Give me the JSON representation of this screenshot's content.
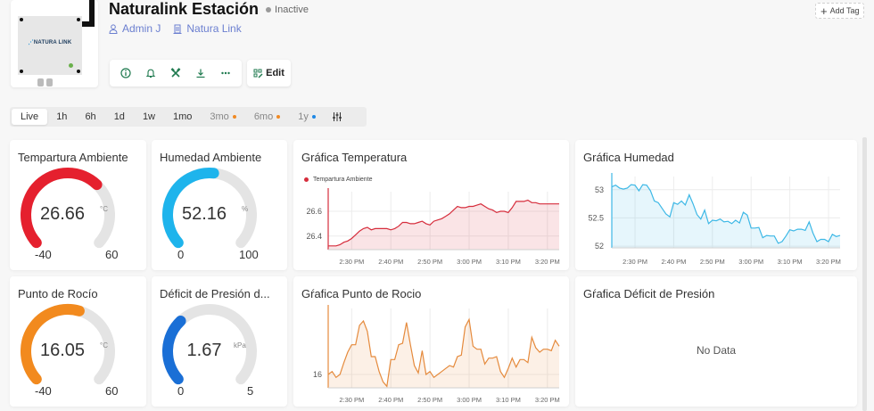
{
  "header": {
    "title": "Naturalink Estación",
    "status": "Inactive",
    "status_color": "#9a9a9a",
    "owner": "Admin J",
    "organization": "Natura Link",
    "add_tag_label": "Add Tag",
    "edit_label": "Edit",
    "device_logo_text": "NATURA LINK",
    "actions": [
      {
        "name": "info",
        "icon": "info-icon"
      },
      {
        "name": "alerts",
        "icon": "bell-icon"
      },
      {
        "name": "tools",
        "icon": "tools-icon"
      },
      {
        "name": "download",
        "icon": "download-icon"
      },
      {
        "name": "more",
        "icon": "more-icon"
      }
    ]
  },
  "time_range": {
    "items": [
      {
        "label": "Live",
        "active": true
      },
      {
        "label": "1h"
      },
      {
        "label": "6h"
      },
      {
        "label": "1d"
      },
      {
        "label": "1w"
      },
      {
        "label": "1mo"
      },
      {
        "label": "3mo",
        "muted": true,
        "dot": "#f08a24"
      },
      {
        "label": "6mo",
        "muted": true,
        "dot": "#f08a24"
      },
      {
        "label": "1y",
        "muted": true,
        "dot": "#1e88e5"
      }
    ],
    "settings_icon": "sliders-icon"
  },
  "gauges": [
    {
      "title": "Tempartura Ambiente",
      "value": "26.66",
      "unit": "°C",
      "min": "-40",
      "max": "60",
      "fraction": 0.6666,
      "color": "#e5202e"
    },
    {
      "title": "Humedad Ambiente",
      "value": "52.16",
      "unit": "%",
      "min": "0",
      "max": "100",
      "fraction": 0.5216,
      "color": "#1eb4ec"
    },
    {
      "title": "Punto de Rocío",
      "value": "16.05",
      "unit": "°C",
      "min": "-40",
      "max": "60",
      "fraction": 0.5605,
      "color": "#f28a1e"
    },
    {
      "title": "Déficit de Presión d...",
      "value": "1.67",
      "unit": "kPa",
      "min": "0",
      "max": "5",
      "fraction": 0.334,
      "color": "#1a6fd6"
    }
  ],
  "charts": {
    "temperature": {
      "title": "Gráfica Temperatura",
      "legend": "Tempartura Ambiente"
    },
    "humidity": {
      "title": "Gráfica Humedad"
    },
    "dew_point": {
      "title": "Gŕafica Punto de Rocio"
    },
    "vpd": {
      "title": "Gŕafica Déficit de Presión",
      "no_data": "No Data"
    }
  },
  "chart_data": [
    {
      "type": "area",
      "title": "Gráfica Temperatura",
      "legend": [
        "Tempartura Ambiente"
      ],
      "color": "#d62d3c",
      "x_ticks": [
        "2:30 PM",
        "2:40 PM",
        "2:50 PM",
        "3:00 PM",
        "3:10 PM",
        "3:20 PM"
      ],
      "y_ticks": [
        26.4,
        26.6
      ],
      "ylim": [
        26.29,
        26.73
      ],
      "x_minutes": [
        24,
        25,
        26,
        27,
        28,
        29,
        30,
        31,
        32,
        33,
        34,
        35,
        36,
        37,
        38,
        39,
        40,
        41,
        42,
        43,
        44,
        45,
        46,
        47,
        48,
        49,
        50,
        51,
        52,
        53,
        54,
        55,
        56,
        57,
        58,
        59,
        60,
        61,
        62,
        63,
        64,
        65,
        66,
        67,
        68,
        69,
        70,
        71,
        72,
        73,
        74,
        75,
        76,
        77,
        78,
        79,
        80,
        81,
        82,
        83
      ],
      "values": [
        26.32,
        26.32,
        26.32,
        26.33,
        26.35,
        26.36,
        26.38,
        26.41,
        26.44,
        26.46,
        26.47,
        26.45,
        26.46,
        26.46,
        26.46,
        26.46,
        26.45,
        26.46,
        26.48,
        26.51,
        26.51,
        26.5,
        26.5,
        26.51,
        26.52,
        26.5,
        26.49,
        26.52,
        26.53,
        26.54,
        26.56,
        26.58,
        26.61,
        26.64,
        26.63,
        26.63,
        26.64,
        26.64,
        26.65,
        26.66,
        26.64,
        26.62,
        26.61,
        26.59,
        26.6,
        26.6,
        26.59,
        26.63,
        26.68,
        26.68,
        26.68,
        26.69,
        26.67,
        26.67,
        26.66,
        26.66,
        26.66,
        26.66,
        26.66,
        26.66
      ]
    },
    {
      "type": "area",
      "title": "Gráfica Humedad",
      "color": "#3db8e6",
      "x_ticks": [
        "2:30 PM",
        "2:40 PM",
        "2:50 PM",
        "3:00 PM",
        "3:10 PM",
        "3:20 PM"
      ],
      "y_ticks": [
        52,
        52.5,
        53
      ],
      "ylim": [
        51.97,
        53.17
      ],
      "values": [
        53.05,
        53.08,
        53.03,
        53.01,
        53.03,
        53.09,
        53.08,
        52.98,
        53.09,
        53.08,
        52.98,
        52.8,
        52.77,
        52.67,
        52.57,
        52.52,
        52.77,
        52.74,
        52.8,
        52.73,
        52.91,
        52.75,
        52.56,
        52.48,
        52.64,
        52.4,
        52.46,
        52.45,
        52.48,
        52.43,
        52.44,
        52.4,
        52.46,
        52.41,
        52.6,
        52.55,
        52.32,
        52.32,
        52.33,
        52.15,
        52.19,
        52.18,
        52.18,
        52.05,
        52.08,
        52.18,
        52.29,
        52.27,
        52.3,
        52.3,
        52.28,
        52.43,
        52.23,
        52.08,
        52.12,
        52.12,
        52.08,
        52.21,
        52.17,
        52.19
      ]
    },
    {
      "type": "area",
      "title": "Gŕafica Punto de Rocio",
      "color": "#e58a3c",
      "x_ticks": [
        "2:30 PM",
        "2:40 PM",
        "2:50 PM",
        "3:00 PM",
        "3:10 PM",
        "3:20 PM"
      ],
      "y_ticks": [
        16
      ],
      "ylim": [
        15.91,
        16.42
      ],
      "values": [
        16.0,
        16.02,
        15.98,
        16.0,
        16.08,
        16.15,
        16.2,
        16.2,
        16.33,
        16.36,
        16.29,
        16.12,
        16.12,
        16.02,
        15.95,
        15.92,
        16.1,
        16.1,
        16.2,
        16.21,
        16.35,
        16.2,
        16.06,
        16.01,
        16.16,
        16.0,
        16.02,
        15.98,
        16.0,
        16.02,
        16.04,
        16.06,
        16.05,
        16.12,
        16.13,
        16.32,
        16.37,
        16.19,
        16.17,
        16.17,
        16.07,
        16.11,
        16.11,
        16.12,
        16.02,
        15.98,
        16.04,
        16.11,
        16.05,
        16.1,
        16.1,
        16.08,
        16.25,
        16.18,
        16.15,
        16.17,
        16.17,
        16.16,
        16.23,
        16.19
      ]
    },
    {
      "type": "area",
      "title": "Gŕafica Déficit de Presión",
      "values": [],
      "annotation": "No Data"
    }
  ]
}
